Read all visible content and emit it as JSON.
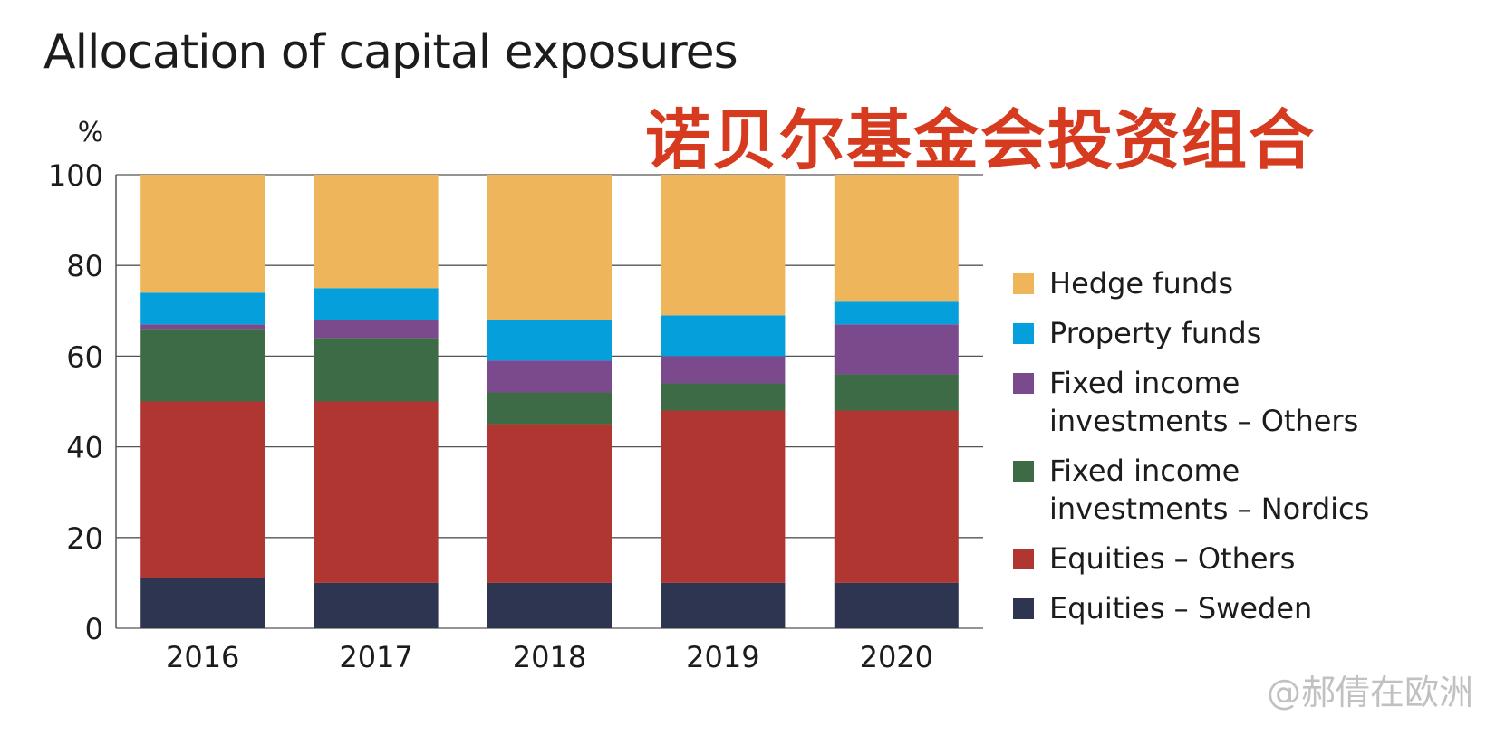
{
  "title": "Allocation of capital exposures",
  "overlay_title": "诺贝尔基金会投资组合",
  "watermark": "@郝倩在欧洲",
  "chart_data": {
    "type": "bar",
    "stacked": true,
    "title": "Allocation of capital exposures",
    "ylabel": "%",
    "xlabel": "",
    "ylim": [
      0,
      100
    ],
    "yticks": [
      0,
      20,
      40,
      60,
      80,
      100
    ],
    "grid": true,
    "legend_position": "right",
    "categories": [
      "2016",
      "2017",
      "2018",
      "2019",
      "2020"
    ],
    "series": [
      {
        "name": "Equities – Sweden",
        "color": "#2e3550",
        "values": [
          11,
          10,
          10,
          10,
          10
        ]
      },
      {
        "name": "Equities – Others",
        "color": "#b03632",
        "values": [
          39,
          40,
          35,
          38,
          38
        ]
      },
      {
        "name": "Fixed income investments – Nordics",
        "color": "#3d6b45",
        "values": [
          16,
          14,
          7,
          6,
          8
        ]
      },
      {
        "name": "Fixed income investments – Others",
        "color": "#7b4a8c",
        "values": [
          1,
          4,
          7,
          6,
          11
        ]
      },
      {
        "name": "Property funds",
        "color": "#05a0dc",
        "values": [
          7,
          7,
          9,
          9,
          5
        ]
      },
      {
        "name": "Hedge funds",
        "color": "#efb55a",
        "values": [
          26,
          25,
          32,
          31,
          28
        ]
      }
    ],
    "legend": [
      {
        "label": "Hedge funds",
        "color": "#efb55a"
      },
      {
        "label": "Property funds",
        "color": "#05a0dc"
      },
      {
        "label": "Fixed income\ninvestments – Others",
        "color": "#7b4a8c"
      },
      {
        "label": "Fixed income\ninvestments – Nordics",
        "color": "#3d6b45"
      },
      {
        "label": "Equities – Others",
        "color": "#b03632"
      },
      {
        "label": "Equities – Sweden",
        "color": "#2e3550"
      }
    ]
  }
}
